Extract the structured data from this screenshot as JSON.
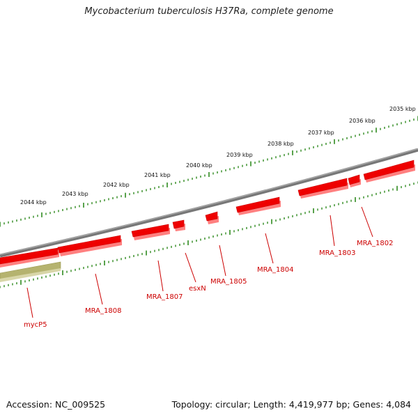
{
  "title": "Mycobacterium tuberculosis H37Ra, complete genome",
  "footer": {
    "accession": "Accession: NC_009525",
    "summary": "Topology: circular; Length: 4,419,977 bp; Genes: 4,084"
  },
  "colors": {
    "gene": "#ee0000",
    "gene_label": "#cc0000",
    "scale_tick": "#2f8a1f",
    "genome_line": "#808080",
    "pseudo_feature": "#a7a561"
  },
  "scale": {
    "labels": [
      "2035 kbp",
      "2036 kbp",
      "2037 kbp",
      "2038 kbp",
      "2039 kbp",
      "2040 kbp",
      "2041 kbp",
      "2042 kbp",
      "2043 kbp",
      "2044 kbp"
    ]
  },
  "genes": [
    {
      "name": "MRA_1802"
    },
    {
      "name": "MRA_1803"
    },
    {
      "name": "MRA_1804"
    },
    {
      "name": "MRA_1805"
    },
    {
      "name": "esxN"
    },
    {
      "name": "MRA_1807"
    },
    {
      "name": "MRA_1808"
    },
    {
      "name": "mycP5"
    }
  ]
}
